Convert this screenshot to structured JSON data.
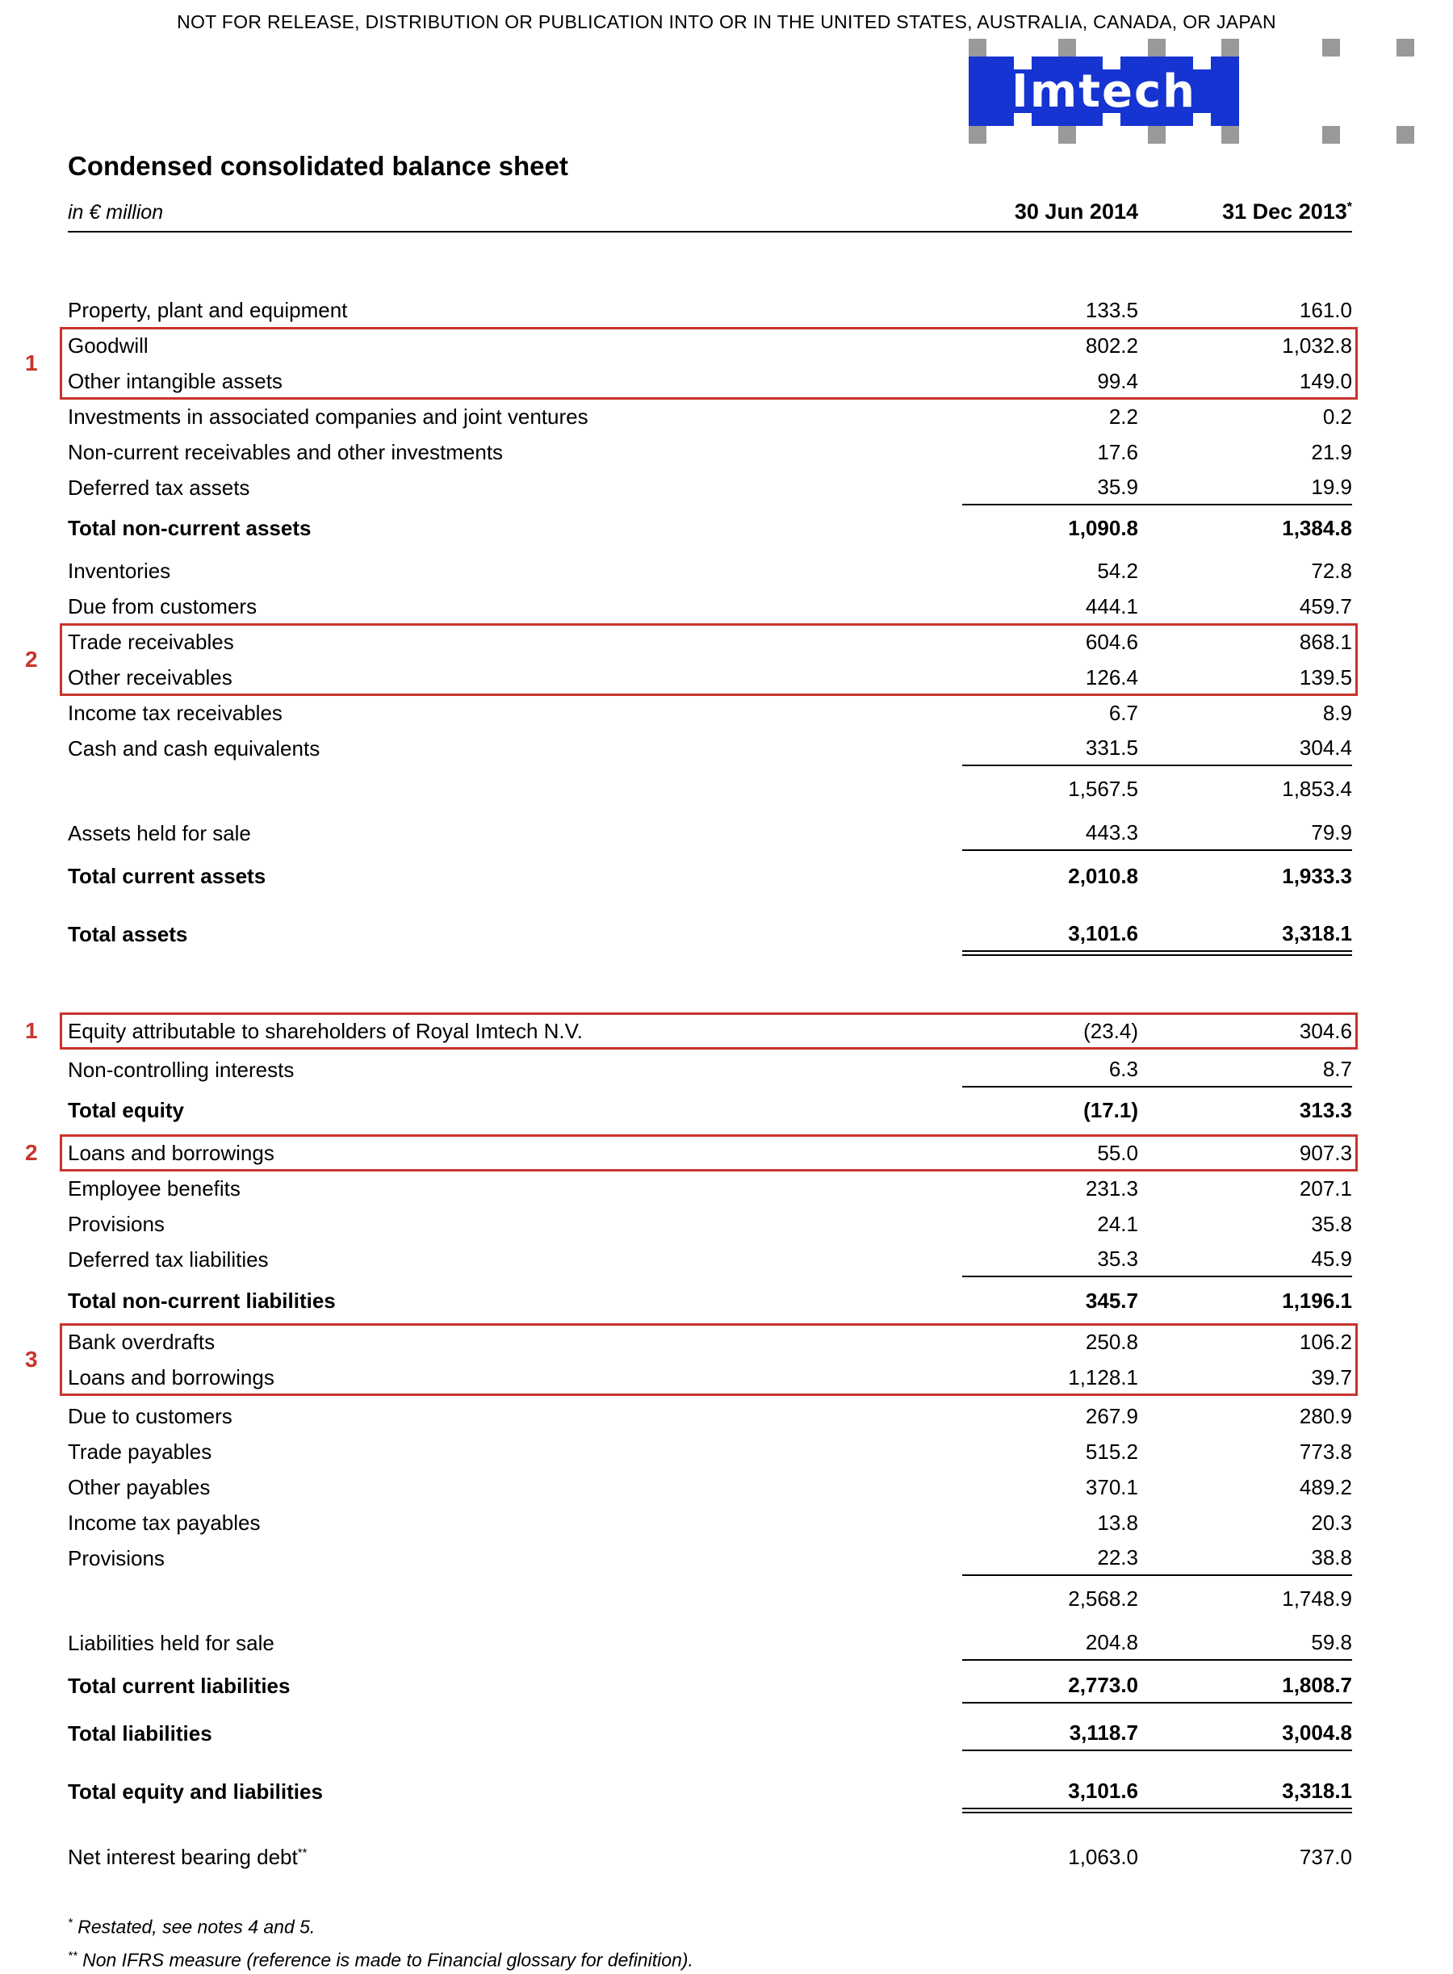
{
  "page": {
    "disclaimer": "NOT FOR RELEASE, DISTRIBUTION OR PUBLICATION INTO OR IN THE UNITED STATES, AUSTRALIA, CANADA, OR JAPAN",
    "title": "Condensed consolidated balance sheet",
    "unit_label": "in € million",
    "columns": {
      "col1": "30 Jun 2014",
      "col2": "31 Dec 2013",
      "col2_sup": "*"
    },
    "logo": {
      "text": "Imtech",
      "blue": "#1634d2",
      "gray": "#999999"
    },
    "accent_red": "#c9342b",
    "footnotes": [
      {
        "sup": "*",
        "text": "Restated, see notes 4 and 5."
      },
      {
        "sup": "**",
        "text": "Non IFRS measure (reference is made to Financial glossary for definition)."
      }
    ]
  },
  "table": {
    "rows": [
      {
        "label": "Property, plant and equipment",
        "v1": "133.5",
        "v2": "161.0"
      },
      {
        "label": "Goodwill",
        "v1": "802.2",
        "v2": "1,032.8",
        "box_start": "1"
      },
      {
        "label": "Other intangible assets",
        "v1": "99.4",
        "v2": "149.0",
        "box_end": true
      },
      {
        "label": "Investments in associated companies and joint ventures",
        "v1": "2.2",
        "v2": "0.2"
      },
      {
        "label": "Non-current receivables and other investments",
        "v1": "17.6",
        "v2": "21.9"
      },
      {
        "label": "Deferred tax assets",
        "v1": "35.9",
        "v2": "19.9",
        "rule": "single"
      },
      {
        "label": "Total non-current assets",
        "v1": "1,090.8",
        "v2": "1,384.8",
        "bold": true,
        "gap": 6
      },
      {
        "label": "Inventories",
        "v1": "54.2",
        "v2": "72.8",
        "gap": 9
      },
      {
        "label": "Due from customers",
        "v1": "444.1",
        "v2": "459.7"
      },
      {
        "label": "Trade receivables",
        "v1": "604.6",
        "v2": "868.1",
        "box_start": "2"
      },
      {
        "label": "Other receivables",
        "v1": "126.4",
        "v2": "139.5",
        "box_end": true
      },
      {
        "label": "Income tax receivables",
        "v1": "6.7",
        "v2": "8.9"
      },
      {
        "label": "Cash and cash equivalents",
        "v1": "331.5",
        "v2": "304.4",
        "rule": "single"
      },
      {
        "label": "",
        "v1": "1,567.5",
        "v2": "1,853.4",
        "gap": 6
      },
      {
        "label": "Assets held for sale",
        "v1": "443.3",
        "v2": "79.9",
        "gap": 11,
        "rule": "single"
      },
      {
        "label": "Total current assets",
        "v1": "2,010.8",
        "v2": "1,933.3",
        "bold": true,
        "gap": 9
      },
      {
        "label": "Total assets",
        "v1": "3,101.6",
        "v2": "3,318.1",
        "bold": true,
        "gap": 28,
        "rule": "double"
      },
      {
        "label": "Equity attributable to shareholders of Royal Imtech N.V.",
        "v1": "(23.4)",
        "v2": "304.6",
        "gap": 76,
        "box_start": "1",
        "box_end": true
      },
      {
        "label": "Non-controlling interests",
        "v1": "6.3",
        "v2": "8.7",
        "gap": 4,
        "rule": "single"
      },
      {
        "label": "Total equity",
        "v1": "(17.1)",
        "v2": "313.3",
        "bold": true,
        "gap": 6
      },
      {
        "label": "Loans and borrowings",
        "v1": "55.0",
        "v2": "907.3",
        "gap": 9,
        "box_start": "2",
        "box_end": true
      },
      {
        "label": "Employee benefits",
        "v1": "231.3",
        "v2": "207.1"
      },
      {
        "label": "Provisions",
        "v1": "24.1",
        "v2": "35.8"
      },
      {
        "label": "Deferred tax liabilities",
        "v1": "35.3",
        "v2": "45.9",
        "rule": "single"
      },
      {
        "label": "Total non-current liabilities",
        "v1": "345.7",
        "v2": "1,196.1",
        "bold": true,
        "gap": 7
      },
      {
        "label": "Bank overdrafts",
        "v1": "250.8",
        "v2": "106.2",
        "gap": 7,
        "box_start": "3"
      },
      {
        "label": "Loans and borrowings",
        "v1": "1,128.1",
        "v2": "39.7",
        "box_end": true
      },
      {
        "label": "Due to customers",
        "v1": "267.9",
        "v2": "280.9",
        "gap": 4
      },
      {
        "label": "Trade payables",
        "v1": "515.2",
        "v2": "773.8"
      },
      {
        "label": "Other payables",
        "v1": "370.1",
        "v2": "489.2"
      },
      {
        "label": "Income tax payables",
        "v1": "13.8",
        "v2": "20.3"
      },
      {
        "label": "Provisions",
        "v1": "22.3",
        "v2": "38.8",
        "rule": "single"
      },
      {
        "label": "",
        "v1": "2,568.2",
        "v2": "1,748.9",
        "gap": 6
      },
      {
        "label": "Liabilities held for sale",
        "v1": "204.8",
        "v2": "59.8",
        "gap": 11,
        "rule": "single"
      },
      {
        "label": "Total current liabilities",
        "v1": "2,773.0",
        "v2": "1,808.7",
        "bold": true,
        "gap": 9,
        "rule": "single"
      },
      {
        "label": "Total liabilities",
        "v1": "3,118.7",
        "v2": "3,004.8",
        "bold": true,
        "gap": 15,
        "rule": "single"
      },
      {
        "label": "Total equity and liabilities",
        "v1": "3,101.6",
        "v2": "3,318.1",
        "bold": true,
        "gap": 28,
        "rule": "double"
      },
      {
        "label": "Net interest bearing debt",
        "label_sup": "**",
        "v1": "1,063.0",
        "v2": "737.0",
        "gap": 37
      }
    ]
  }
}
